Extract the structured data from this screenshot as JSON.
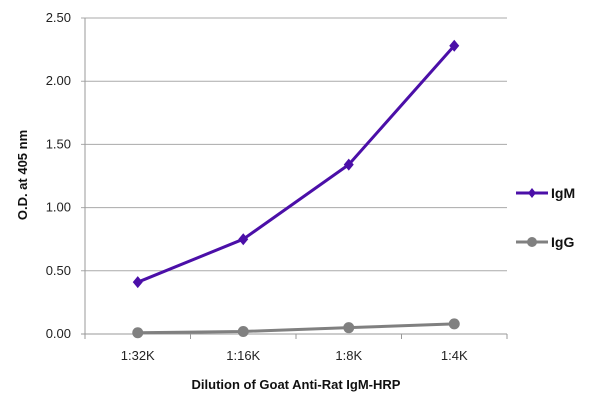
{
  "chart_data": {
    "type": "line",
    "xlabel": "Dilution of Goat Anti-Rat IgM-HRP",
    "ylabel": "O.D. at 405 nm",
    "categories": [
      "1:32K",
      "1:16K",
      "1:8K",
      "1:4K"
    ],
    "ylim": [
      0,
      2.5
    ],
    "yticks": [
      "0.00",
      "0.50",
      "1.00",
      "1.50",
      "2.00",
      "2.50"
    ],
    "grid": true,
    "legend_position": "right",
    "series": [
      {
        "name": "IgM",
        "values": [
          0.41,
          0.75,
          1.34,
          2.28
        ],
        "color": "#4b0fa8",
        "marker": "diamond"
      },
      {
        "name": "IgG",
        "values": [
          0.01,
          0.02,
          0.05,
          0.08
        ],
        "color": "#808080",
        "marker": "circle"
      }
    ]
  }
}
